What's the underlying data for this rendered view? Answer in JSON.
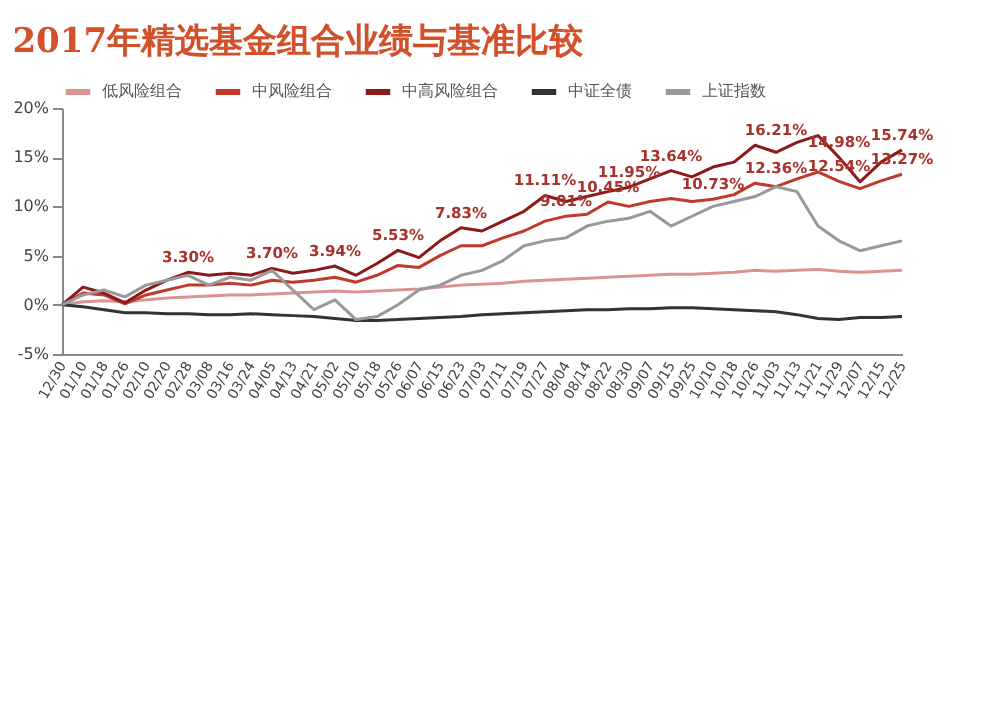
{
  "chart_data": {
    "type": "line",
    "title": "2017年精选基金组合业绩与基准比较",
    "categories": [
      "12/30",
      "01/10",
      "01/18",
      "01/26",
      "02/10",
      "02/20",
      "02/28",
      "03/08",
      "03/16",
      "03/24",
      "04/05",
      "04/13",
      "04/21",
      "05/02",
      "05/10",
      "05/18",
      "05/26",
      "06/07",
      "06/15",
      "06/23",
      "07/03",
      "07/11",
      "07/19",
      "07/27",
      "08/04",
      "08/14",
      "08/22",
      "08/30",
      "09/07",
      "09/15",
      "09/25",
      "10/10",
      "10/18",
      "10/26",
      "11/03",
      "11/13",
      "11/21",
      "11/29",
      "12/07",
      "12/15",
      "12/25"
    ],
    "series": [
      {
        "name": "低风险组合",
        "color": "#d99393",
        "values": [
          0,
          0.3,
          0.4,
          0.3,
          0.5,
          0.7,
          0.8,
          0.9,
          1.0,
          1.0,
          1.1,
          1.2,
          1.3,
          1.4,
          1.3,
          1.4,
          1.5,
          1.6,
          1.8,
          2.0,
          2.1,
          2.2,
          2.4,
          2.5,
          2.6,
          2.7,
          2.8,
          2.9,
          3.0,
          3.1,
          3.1,
          3.2,
          3.3,
          3.5,
          3.4,
          3.5,
          3.6,
          3.4,
          3.3,
          3.4,
          3.5
        ]
      },
      {
        "name": "中风险组合",
        "color": "#c0392b",
        "values": [
          0,
          1.2,
          1.0,
          0.1,
          1.0,
          1.5,
          2.0,
          2.0,
          2.2,
          2.0,
          2.5,
          2.3,
          2.5,
          2.8,
          2.3,
          3.0,
          4.0,
          3.8,
          5.0,
          6.0,
          6.0,
          6.8,
          7.5,
          8.5,
          9.01,
          9.2,
          10.45,
          10.0,
          10.5,
          10.8,
          10.5,
          10.73,
          11.2,
          12.36,
          12.0,
          12.8,
          13.5,
          12.54,
          11.8,
          12.6,
          13.27
        ]
      },
      {
        "name": "中高风险组合",
        "color": "#8b1a1a",
        "values": [
          0,
          1.8,
          1.2,
          0.2,
          1.5,
          2.5,
          3.3,
          3.0,
          3.2,
          3.0,
          3.7,
          3.2,
          3.5,
          3.94,
          3.0,
          4.2,
          5.53,
          4.8,
          6.5,
          7.83,
          7.5,
          8.5,
          9.5,
          11.11,
          10.5,
          11.0,
          11.5,
          11.95,
          12.8,
          13.64,
          13.0,
          14.0,
          14.5,
          16.21,
          15.5,
          16.5,
          17.2,
          14.98,
          12.5,
          14.5,
          15.74
        ]
      },
      {
        "name": "中证全债",
        "color": "#333333",
        "values": [
          0,
          -0.2,
          -0.5,
          -0.8,
          -0.8,
          -0.9,
          -0.9,
          -1.0,
          -1.0,
          -0.9,
          -1.0,
          -1.1,
          -1.2,
          -1.4,
          -1.6,
          -1.6,
          -1.5,
          -1.4,
          -1.3,
          -1.2,
          -1.0,
          -0.9,
          -0.8,
          -0.7,
          -0.6,
          -0.5,
          -0.5,
          -0.4,
          -0.4,
          -0.3,
          -0.3,
          -0.4,
          -0.5,
          -0.6,
          -0.7,
          -1.0,
          -1.4,
          -1.5,
          -1.3,
          -1.3,
          -1.2
        ]
      },
      {
        "name": "上证指数",
        "color": "#999999",
        "values": [
          0,
          1.0,
          1.5,
          0.8,
          2.0,
          2.5,
          3.0,
          2.0,
          2.8,
          2.5,
          3.5,
          1.5,
          -0.5,
          0.5,
          -1.5,
          -1.2,
          0.0,
          1.5,
          2.0,
          3.0,
          3.5,
          4.5,
          6.0,
          6.5,
          6.8,
          8.0,
          8.5,
          8.8,
          9.5,
          8.0,
          9.0,
          10.0,
          10.5,
          11.0,
          12.0,
          11.5,
          8.0,
          6.5,
          5.5,
          6.0,
          6.5
        ]
      }
    ],
    "ylim": [
      -5,
      20
    ],
    "yticks": [
      {
        "value": -5,
        "label": "-5%"
      },
      {
        "value": 0,
        "label": "0%"
      },
      {
        "value": 5,
        "label": "5%"
      },
      {
        "value": 10,
        "label": "10%"
      },
      {
        "value": 15,
        "label": "15%"
      },
      {
        "value": 20,
        "label": "20%"
      }
    ],
    "annotations": [
      {
        "text": "3.30%",
        "x": "02/28",
        "y": 3.3
      },
      {
        "text": "3.70%",
        "x": "04/05",
        "y": 3.7
      },
      {
        "text": "3.94%",
        "x": "05/02",
        "y": 3.94
      },
      {
        "text": "5.53%",
        "x": "05/26",
        "y": 5.53
      },
      {
        "text": "7.83%",
        "x": "06/23",
        "y": 7.83
      },
      {
        "text": "11.11%",
        "x": "07/27",
        "y": 11.11
      },
      {
        "text": "11.95%",
        "x": "08/30",
        "y": 11.95
      },
      {
        "text": "13.64%",
        "x": "09/15",
        "y": 13.64
      },
      {
        "text": "16.21%",
        "x": "11/03",
        "y": 16.21
      },
      {
        "text": "14.98%",
        "x": "11/29",
        "y": 14.98
      },
      {
        "text": "15.74%",
        "x": "12/25",
        "y": 15.74
      },
      {
        "text": "9.01%",
        "x": "08/04",
        "y": 9.01
      },
      {
        "text": "10.45%",
        "x": "08/22",
        "y": 10.45
      },
      {
        "text": "10.73%",
        "x": "10/10",
        "y": 10.73
      },
      {
        "text": "12.36%",
        "x": "11/03",
        "y": 12.36
      },
      {
        "text": "12.54%",
        "x": "11/29",
        "y": 12.54
      },
      {
        "text": "13.27%",
        "x": "12/25",
        "y": 13.27
      }
    ],
    "legend": "top",
    "marker": "none",
    "line_style": "solid",
    "grid": false
  }
}
